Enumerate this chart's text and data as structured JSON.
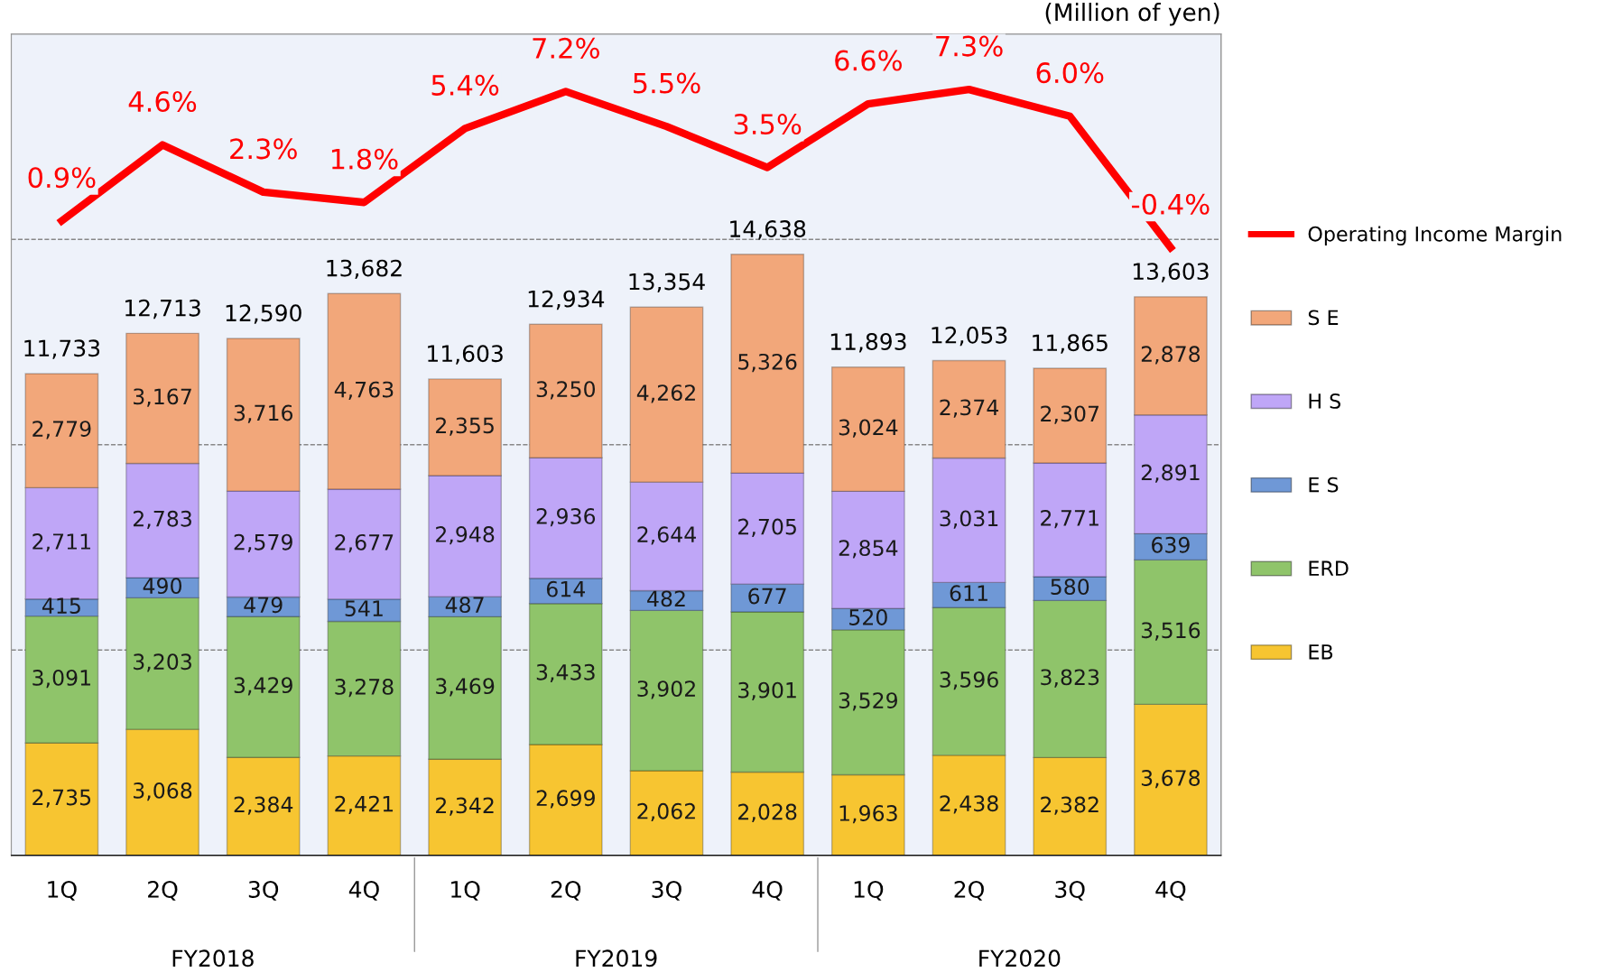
{
  "chart_data": {
    "type": "bar",
    "stacked": true,
    "categories": [
      "1Q",
      "2Q",
      "3Q",
      "4Q",
      "1Q",
      "2Q",
      "3Q",
      "4Q",
      "1Q",
      "2Q",
      "3Q",
      "4Q"
    ],
    "series": [
      {
        "name": "EB",
        "color": "#f7c531",
        "values": [
          2735,
          3068,
          2384,
          2421,
          2342,
          2699,
          2062,
          2028,
          1963,
          2438,
          2382,
          3678
        ],
        "value_labels": [
          "2,735",
          "3,068",
          "2,384",
          "2,421",
          "2,342",
          "2,699",
          "2,062",
          "2,028",
          "1,963",
          "2,438",
          "2,382",
          "3,678"
        ]
      },
      {
        "name": "ERD",
        "color": "#8fc46a",
        "values": [
          3091,
          3203,
          3429,
          3278,
          3469,
          3433,
          3902,
          3901,
          3529,
          3596,
          3823,
          3516
        ],
        "value_labels": [
          "3,091",
          "3,203",
          "3,429",
          "3,278",
          "3,469",
          "3,433",
          "3,902",
          "3,901",
          "3,529",
          "3,596",
          "3,823",
          "3,516"
        ]
      },
      {
        "name": "E S",
        "color": "#6f98d6",
        "values": [
          415,
          490,
          479,
          541,
          487,
          614,
          482,
          677,
          520,
          611,
          580,
          639
        ],
        "value_labels": [
          "415",
          "490",
          "479",
          "541",
          "487",
          "614",
          "482",
          "677",
          "520",
          "611",
          "580",
          "639"
        ]
      },
      {
        "name": "H S",
        "color": "#bfa6f7",
        "values": [
          2711,
          2783,
          2579,
          2677,
          2948,
          2936,
          2644,
          2705,
          2854,
          3031,
          2771,
          2891
        ],
        "value_labels": [
          "2,711",
          "2,783",
          "2,579",
          "2,677",
          "2,948",
          "2,936",
          "2,644",
          "2,705",
          "2,854",
          "3,031",
          "2,771",
          "2,891"
        ]
      },
      {
        "name": "S E",
        "color": "#f2a77a",
        "values": [
          2779,
          3167,
          3716,
          4763,
          2355,
          3250,
          4262,
          5326,
          3024,
          2374,
          2307,
          2878
        ],
        "value_labels": [
          "2,779",
          "3,167",
          "3,716",
          "4,763",
          "2,355",
          "3,250",
          "4,262",
          "5,326",
          "3,024",
          "2,374",
          "2,307",
          "2,878"
        ]
      },
      {
        "name": "Operating Income Margin",
        "type": "line",
        "axis": "y2",
        "color": "#ff0000",
        "values": [
          0.9,
          4.6,
          2.3,
          1.8,
          5.4,
          7.2,
          5.5,
          3.5,
          6.6,
          7.3,
          6.0,
          -0.4
        ],
        "value_labels": [
          "0.9%",
          "4.6%",
          "2.3%",
          "1.8%",
          "5.4%",
          "7.2%",
          "5.5%",
          "3.5%",
          "6.6%",
          "7.3%",
          "6.0%",
          "-0.4%"
        ]
      }
    ],
    "totals": [
      "11,733",
      "12,713",
      "12,590",
      "13,682",
      "11,603",
      "12,934",
      "13,354",
      "14,638",
      "11,893",
      "12,053",
      "11,865",
      "13,603"
    ],
    "ylim": [
      0,
      20000
    ],
    "yticks": [
      {
        "value": 5000,
        "label": null
      },
      {
        "value": 10000,
        "label": null
      },
      {
        "value": 15000,
        "label": null
      }
    ],
    "y2lim": [
      -30,
      10
    ],
    "grid": "y",
    "tick_labels": "x",
    "legend": "right",
    "marker": "none",
    "annotations": [
      "(Million of yen)",
      "FY2018",
      "FY2019",
      "FY2020"
    ]
  }
}
